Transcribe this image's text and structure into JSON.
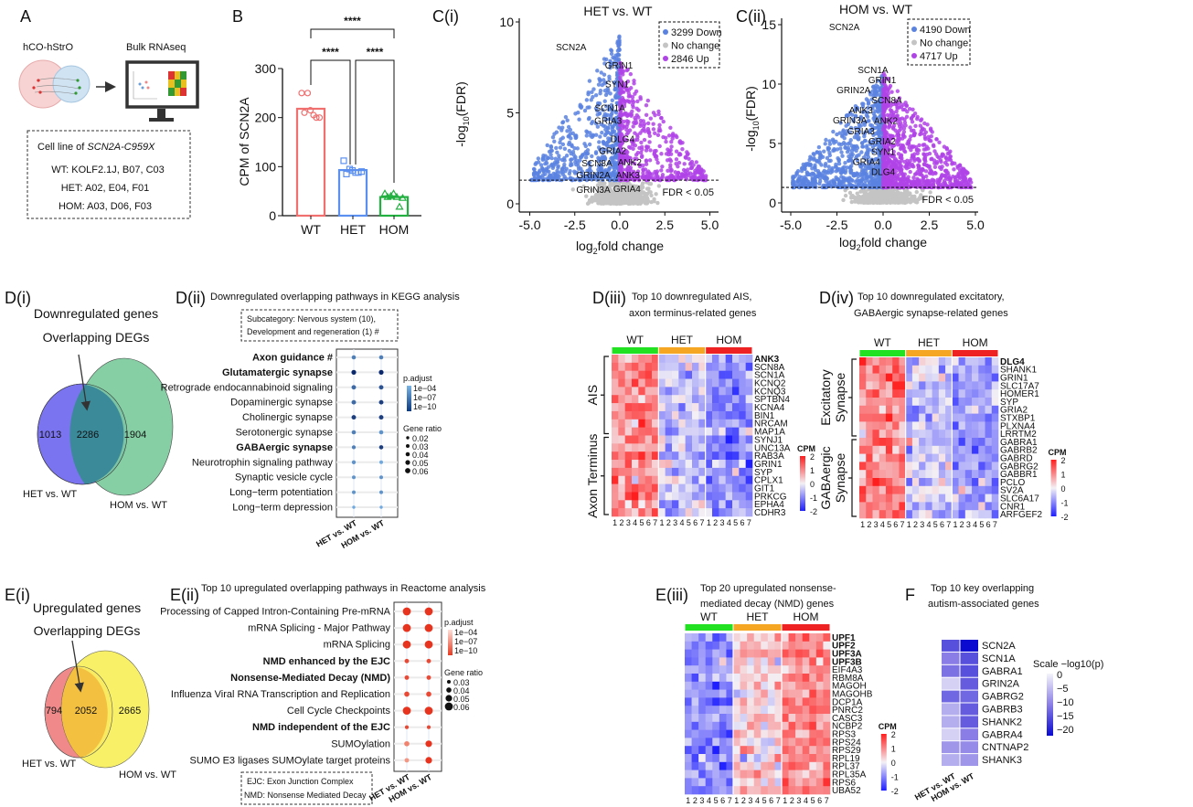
{
  "panel_A": {
    "label": "A",
    "organoid_label": "hCO-hStrO",
    "rnaseq_label": "Bulk RNAseq",
    "box_title_prefix": "Cell line of ",
    "box_title_gene": "SCN2A-C959X",
    "lines": [
      "WT: KOLF2.1J, B07, C03",
      "HET: A02, E04, F01",
      "HOM: A03, D06, F03"
    ]
  },
  "colors": {
    "wt": "#f07070",
    "het": "#5b8ff0",
    "hom": "#22b040",
    "down": "#5a82e0",
    "up": "#b043e8",
    "nochange": "#c4c4c4",
    "group_wt": "#22e022",
    "group_het": "#f5a623",
    "group_hom": "#ee2222"
  },
  "chart_data": [
    {
      "type": "bar",
      "panel": "B",
      "categories": [
        "WT",
        "HET",
        "HOM"
      ],
      "values": [
        218,
        93,
        38
      ],
      "points": [
        [
          250,
          250,
          205,
          200,
          210,
          215,
          200
        ],
        [
          112,
          95,
          88,
          90,
          85,
          92,
          88
        ],
        [
          45,
          40,
          38,
          36,
          38,
          45,
          18
        ]
      ],
      "ylabel": "CPM of SCN2A",
      "ylim": [
        0,
        300
      ],
      "ytick_labels": [
        "0",
        "100",
        "200",
        "300"
      ],
      "significance": [
        {
          "pair": [
            "WT",
            "HOM"
          ],
          "label": "****"
        },
        {
          "pair": [
            "WT",
            "HET"
          ],
          "label": "****"
        },
        {
          "pair": [
            "HET",
            "HOM"
          ],
          "label": "****"
        }
      ]
    },
    {
      "type": "scatter",
      "panel": "C(i)",
      "title": "HET vs. WT",
      "legend": [
        {
          "label": "3299 Down"
        },
        {
          "label": "No change"
        },
        {
          "label": "2846 Up"
        }
      ],
      "counts": {
        "down": 3299,
        "up": 2846
      },
      "xlabel_parts": [
        "log",
        "2",
        "fold change"
      ],
      "ylabel_parts": [
        "-log",
        "10",
        "(FDR)"
      ],
      "xlim": [
        -5.5,
        5.5
      ],
      "ylim": [
        -0.5,
        10.5
      ],
      "xticks": [
        -5,
        -2.5,
        0,
        2.5,
        5
      ],
      "xtick_labels": [
        "-5.0",
        "-2.5",
        "0.0",
        "2.5",
        "5.0"
      ],
      "yticks": [
        0,
        5,
        10
      ],
      "ytick_labels": [
        "0",
        "5",
        "10"
      ],
      "fdr_threshold": 1.3,
      "threshold_label": "FDR <  0.05",
      "peak_down": 9.3,
      "peak_up": 8.0,
      "labeled_genes": [
        {
          "gene": "SCN2A",
          "x": -2.7,
          "y": 8.65
        },
        {
          "gene": "GRIN1",
          "x": -0.05,
          "y": 7.65
        },
        {
          "gene": "SYN1",
          "x": -0.15,
          "y": 6.6
        },
        {
          "gene": "SCN1A",
          "x": -0.55,
          "y": 5.3
        },
        {
          "gene": "GRIA3",
          "x": -0.65,
          "y": 4.6
        },
        {
          "gene": "DLG4",
          "x": 0.15,
          "y": 3.6
        },
        {
          "gene": "GRIA2",
          "x": -0.4,
          "y": 2.95
        },
        {
          "gene": "SCN8A",
          "x": -1.27,
          "y": 2.25
        },
        {
          "gene": "ANK2",
          "x": 0.55,
          "y": 2.3
        },
        {
          "gene": "GRIN2A",
          "x": -1.47,
          "y": 1.6
        },
        {
          "gene": "ANK3",
          "x": 0.45,
          "y": 1.6
        },
        {
          "gene": "GRIN3A",
          "x": -1.47,
          "y": 0.8
        },
        {
          "gene": "GRIA4",
          "x": 0.4,
          "y": 0.85
        }
      ]
    },
    {
      "type": "scatter",
      "panel": "C(ii)",
      "title": "HOM vs. WT",
      "legend": [
        {
          "label": "4190 Down"
        },
        {
          "label": "No change"
        },
        {
          "label": "4717 Up"
        }
      ],
      "counts": {
        "down": 4190,
        "up": 4717
      },
      "xlabel_parts": [
        "log",
        "2",
        "fold change"
      ],
      "ylabel_parts": [
        "-log",
        "10",
        "(FDR)"
      ],
      "xlim": [
        -5.5,
        5.2
      ],
      "ylim": [
        -0.8,
        15.5
      ],
      "xticks": [
        -5,
        -2.5,
        0,
        2.5,
        5
      ],
      "xtick_labels": [
        "-5.0",
        "-2.5",
        "0.0",
        "2.5",
        "5.0"
      ],
      "yticks": [
        0,
        5,
        10,
        15
      ],
      "ytick_labels": [
        "0",
        "5",
        "10",
        "15"
      ],
      "fdr_threshold": 1.3,
      "threshold_label": "FDR <  0.05",
      "peak_down": 10.8,
      "peak_up": 11.0,
      "labeled_genes": [
        {
          "gene": "SCN2A",
          "x": -2.1,
          "y": 14.85
        },
        {
          "gene": "SCN1A",
          "x": -0.55,
          "y": 10.5
        },
        {
          "gene": "GRIN2A",
          "x": -1.6,
          "y": 9.0
        },
        {
          "gene": "GRIN1",
          "x": -0.05,
          "y": 9.3
        },
        {
          "gene": "ANK3",
          "x": -1.2,
          "y": 8.1
        },
        {
          "gene": "SCN8A",
          "x": 0.2,
          "y": 8.45
        },
        {
          "gene": "GRIN3A",
          "x": -1.8,
          "y": 7.3
        },
        {
          "gene": "ANK2",
          "x": 0.15,
          "y": 7.4
        },
        {
          "gene": "GRIA3",
          "x": -1.2,
          "y": 6.45
        },
        {
          "gene": "GRIA2",
          "x": -0.05,
          "y": 5.55
        },
        {
          "gene": "SYN1",
          "x": 0.0,
          "y": 4.8
        },
        {
          "gene": "GRIA4",
          "x": -0.9,
          "y": 3.9
        },
        {
          "gene": "DLG4",
          "x": 0.0,
          "y": 2.7
        }
      ]
    },
    {
      "type": "venn",
      "panel": "D(i)",
      "title_lines": [
        "Downregulated genes",
        "Overlapping DEGs"
      ],
      "sets": [
        "HET vs. WT",
        "HOM vs. WT"
      ],
      "only_a": "1013",
      "overlap": "2286",
      "only_b": "1904"
    },
    {
      "type": "dot",
      "panel": "D(ii)",
      "title": "Downregulated overlapping pathways in KEGG analysis",
      "note_lines": [
        "Subcategory: Nervous system (10),",
        "Development and regeneration (1) #"
      ],
      "columns": [
        "HET vs. WT",
        "HOM vs. WT"
      ],
      "rows": [
        {
          "label": "Axon guidance #",
          "bold": true,
          "ratio": [
            0.04,
            0.04
          ],
          "neglog_padj": [
            6,
            6
          ]
        },
        {
          "label": "Glutamatergic synapse",
          "bold": true,
          "ratio": [
            0.05,
            0.05
          ],
          "neglog_padj": [
            10,
            10
          ]
        },
        {
          "label": "Retrograde endocannabinoid signaling",
          "bold": false,
          "ratio": [
            0.045,
            0.045
          ],
          "neglog_padj": [
            7,
            8
          ]
        },
        {
          "label": "Dopaminergic synapse",
          "bold": false,
          "ratio": [
            0.045,
            0.045
          ],
          "neglog_padj": [
            7,
            9
          ]
        },
        {
          "label": "Cholinergic synapse",
          "bold": false,
          "ratio": [
            0.045,
            0.045
          ],
          "neglog_padj": [
            9,
            9
          ]
        },
        {
          "label": "Serotonergic synapse",
          "bold": false,
          "ratio": [
            0.04,
            0.04
          ],
          "neglog_padj": [
            6,
            5
          ]
        },
        {
          "label": "GABAergic synapse",
          "bold": true,
          "ratio": [
            0.035,
            0.04
          ],
          "neglog_padj": [
            6,
            9
          ]
        },
        {
          "label": "Neurotrophin signaling pathway",
          "bold": false,
          "ratio": [
            0.035,
            0.03
          ],
          "neglog_padj": [
            5,
            4
          ]
        },
        {
          "label": "Synaptic vesicle cycle",
          "bold": false,
          "ratio": [
            0.03,
            0.03
          ],
          "neglog_padj": [
            5,
            5
          ]
        },
        {
          "label": "Long−term potentiation",
          "bold": false,
          "ratio": [
            0.03,
            0.03
          ],
          "neglog_padj": [
            5,
            5
          ]
        },
        {
          "label": "Long−term depression",
          "bold": false,
          "ratio": [
            0.02,
            0.02
          ],
          "neglog_padj": [
            4,
            4
          ]
        }
      ],
      "padj_title": "p.adjust",
      "padj_labels": [
        "1e−04",
        "1e−07",
        "1e−10"
      ],
      "ratio_title": "Gene ratio",
      "ratio_labels": [
        "0.02",
        "0.03",
        "0.04",
        "0.05",
        "0.06"
      ],
      "ratio_values": [
        0.02,
        0.03,
        0.04,
        0.05,
        0.06
      ]
    },
    {
      "type": "heatmap",
      "panel": "D(iii)",
      "title_lines": [
        "Top 10 downregulated AIS,",
        "axon terminus-related genes"
      ],
      "groups": [
        "WT",
        "HET",
        "HOM"
      ],
      "sample_labels": [
        "1",
        "2",
        "3",
        "4",
        "5",
        "6",
        "7"
      ],
      "group_means": [
        1.0,
        -0.4,
        -0.9
      ],
      "genes": [
        "ANK3",
        "SCN8A",
        "SCN1A",
        "KCNQ2",
        "KCNQ3",
        "SPTBN4",
        "KCNA4",
        "BIN1",
        "NRCAM",
        "MAP1A",
        "SYNJ1",
        "UNC13A",
        "RAB3A",
        "GRIN1",
        "SYP",
        "CPLX1",
        "GIT1",
        "PRKCG",
        "EPHA4",
        "CDHR3"
      ],
      "bold_genes": [
        "ANK3"
      ],
      "row_groups": [
        {
          "label": "AIS",
          "from": 0,
          "to": 9
        },
        {
          "label": "Axon Terminus",
          "from": 10,
          "to": 19
        }
      ],
      "legend_title": "CPM",
      "legend_labels": [
        "2",
        "1",
        "0",
        "-1",
        "-2"
      ]
    },
    {
      "type": "heatmap",
      "panel": "D(iv)",
      "title_lines": [
        "Top 10 downregulated excitatory,",
        "GABAergic synapse-related genes"
      ],
      "groups": [
        "WT",
        "HET",
        "HOM"
      ],
      "sample_labels": [
        "1",
        "2",
        "3",
        "4",
        "5",
        "6",
        "7"
      ],
      "group_means": [
        1.1,
        -0.4,
        -0.8
      ],
      "genes": [
        "DLG4",
        "SHANK1",
        "GRIN1",
        "SLC17A7",
        "HOMER1",
        "SYP",
        "GRIA2",
        "STXBP1",
        "PLXNA4",
        "LRRTM2",
        "GABRA1",
        "GABRB2",
        "GABRD",
        "GABRG2",
        "GABBR1",
        "PCLO",
        "SV2A",
        "SLC6A17",
        "CNR1",
        "ARFGEF2"
      ],
      "bold_genes": [
        "DLG4"
      ],
      "row_groups": [
        {
          "label_lines": [
            "Excitatory",
            "Synapse"
          ],
          "from": 0,
          "to": 9
        },
        {
          "label_lines": [
            "GABAergic",
            "Synapse"
          ],
          "from": 10,
          "to": 19
        }
      ],
      "legend_title": "CPM",
      "legend_labels": [
        "2",
        "1",
        "0",
        "-1",
        "-2"
      ]
    },
    {
      "type": "venn",
      "panel": "E(i)",
      "title_lines": [
        "Upregulated genes",
        "Overlapping DEGs"
      ],
      "sets": [
        "HET vs. WT",
        "HOM vs. WT"
      ],
      "only_a": "794",
      "overlap": "2052",
      "only_b": "2665"
    },
    {
      "type": "dot",
      "panel": "E(ii)",
      "title": "Top 10 upregulated overlapping pathways in Reactome analysis",
      "note_lines": [
        "EJC: Exon Junction Complex",
        "NMD: Nonsense Mediated Decay"
      ],
      "columns": [
        "HET vs. WT",
        "HOM vs. WT"
      ],
      "rows": [
        {
          "label": "Processing of Capped Intron-Containing Pre-mRNA",
          "bold": false,
          "ratio": [
            0.06,
            0.06
          ],
          "neglog_padj": [
            10,
            10
          ]
        },
        {
          "label": "mRNA Splicing - Major Pathway",
          "bold": false,
          "ratio": [
            0.06,
            0.06
          ],
          "neglog_padj": [
            10,
            10
          ]
        },
        {
          "label": "mRNA Splicing",
          "bold": false,
          "ratio": [
            0.06,
            0.06
          ],
          "neglog_padj": [
            10,
            10
          ]
        },
        {
          "label": "NMD enhanced by the EJC",
          "bold": true,
          "ratio": [
            0.035,
            0.035
          ],
          "neglog_padj": [
            9,
            9
          ]
        },
        {
          "label": "Nonsense-Mediated Decay (NMD)",
          "bold": true,
          "ratio": [
            0.035,
            0.035
          ],
          "neglog_padj": [
            9,
            9
          ]
        },
        {
          "label": "Influenza Viral RNA Transcription and Replication",
          "bold": false,
          "ratio": [
            0.04,
            0.04
          ],
          "neglog_padj": [
            9,
            9
          ]
        },
        {
          "label": "Cell Cycle Checkpoints",
          "bold": false,
          "ratio": [
            0.06,
            0.06
          ],
          "neglog_padj": [
            10,
            10
          ]
        },
        {
          "label": "NMD independent of the EJC",
          "bold": true,
          "ratio": [
            0.03,
            0.03
          ],
          "neglog_padj": [
            9,
            9
          ]
        },
        {
          "label": "SUMOylation",
          "bold": false,
          "ratio": [
            0.04,
            0.05
          ],
          "neglog_padj": [
            6,
            10
          ]
        },
        {
          "label": "SUMO E3 ligases SUMOylate target proteins",
          "bold": false,
          "ratio": [
            0.035,
            0.05
          ],
          "neglog_padj": [
            5,
            10
          ]
        }
      ],
      "padj_title": "p.adjust",
      "padj_labels": [
        "1e−04",
        "1e−07",
        "1e−10"
      ],
      "ratio_title": "Gene ratio",
      "ratio_labels": [
        "0.03",
        "0.04",
        "0.05",
        "0.06"
      ],
      "ratio_values": [
        0.03,
        0.04,
        0.05,
        0.06
      ]
    },
    {
      "type": "heatmap",
      "panel": "E(iii)",
      "title_lines": [
        "Top 20 upregulated nonsense-",
        "mediated decay (NMD) genes"
      ],
      "groups": [
        "WT",
        "HET",
        "HOM"
      ],
      "sample_labels": [
        "1",
        "2",
        "3",
        "4",
        "5",
        "6",
        "7"
      ],
      "group_means": [
        -1.0,
        0.35,
        0.95
      ],
      "genes": [
        "UPF1",
        "UPF2",
        "UPF3A",
        "UPF3B",
        "EIF4A3",
        "RBM8A",
        "MAGOH",
        "MAGOHB",
        "DCP1A",
        "PNRC2",
        "CASC3",
        "NCBP2",
        "RPS3",
        "RPS24",
        "RPS29",
        "RPL19",
        "RPL37",
        "RPL35A",
        "RPS6",
        "UBA52"
      ],
      "bold_genes": [
        "UPF1",
        "UPF2",
        "UPF3A",
        "UPF3B"
      ],
      "legend_title": "CPM",
      "legend_labels": [
        "2",
        "1",
        "0",
        "-1",
        "-2"
      ]
    },
    {
      "type": "heatmap",
      "panel": "F",
      "title_lines": [
        "Top 10 key overlapping",
        "autism-associated genes"
      ],
      "columns": [
        "HET vs. WT",
        "HOM vs. WT"
      ],
      "genes": [
        "SCN2A",
        "SCN1A",
        "GABRA1",
        "GRIN2A",
        "GABRG2",
        "GABRB3",
        "SHANK2",
        "GABRA4",
        "CNTNAP2",
        "SHANK3"
      ],
      "values": [
        [
          -14,
          -20
        ],
        [
          -10,
          -14
        ],
        [
          -11,
          -14
        ],
        [
          -3,
          -13
        ],
        [
          -12,
          -12
        ],
        [
          -6,
          -13
        ],
        [
          -6,
          -13
        ],
        [
          -3,
          -10
        ],
        [
          -8,
          -9
        ],
        [
          -6,
          -8
        ]
      ],
      "legend_title": "Scale −log10(p)",
      "legend_labels": [
        "0",
        "−5",
        "−10",
        "−15",
        "−20"
      ],
      "vlim": [
        -20,
        0
      ]
    }
  ]
}
